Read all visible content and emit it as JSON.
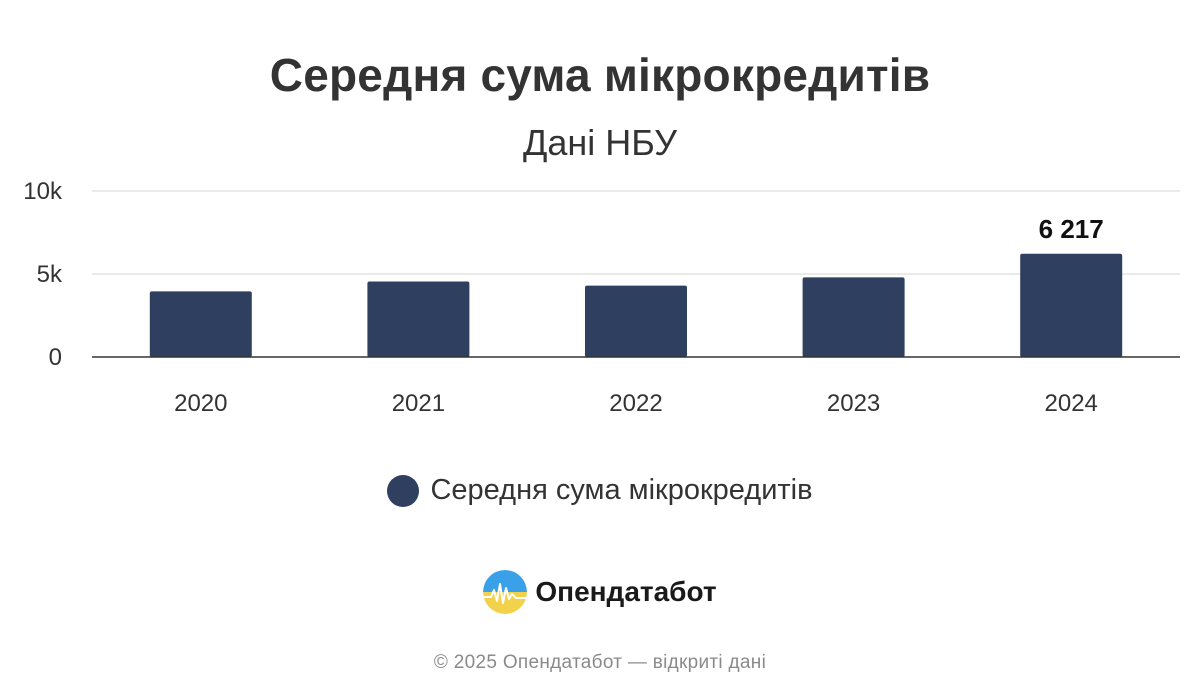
{
  "chart_data": {
    "type": "bar",
    "title": "Середня сума мікрокредитів",
    "subtitle": "Дані НБУ",
    "categories": [
      "2020",
      "2021",
      "2022",
      "2023",
      "2024"
    ],
    "series": [
      {
        "name": "Середня сума мікрокредитів",
        "values": [
          3950,
          4550,
          4300,
          4800,
          6217
        ],
        "color": "#2e3f5f"
      }
    ],
    "data_labels": [
      {
        "category": "2024",
        "text": "6 217"
      }
    ],
    "y_ticks": [
      {
        "value": 0,
        "label": "0"
      },
      {
        "value": 5000,
        "label": "5k"
      },
      {
        "value": 10000,
        "label": "10k"
      }
    ],
    "ylim": [
      0,
      10000
    ],
    "grid": true,
    "legend_position": "bottom"
  },
  "legend": {
    "label": "Середня сума мікрокредитів",
    "color": "#2e3f5f"
  },
  "brand": {
    "name": "Опендатабот",
    "icon": "opendatabot-logo-icon",
    "colors": {
      "top": "#3aa0e8",
      "bottom": "#f2d24a"
    }
  },
  "footer": {
    "text": "© 2025 Опендатабот — відкриті дані"
  }
}
